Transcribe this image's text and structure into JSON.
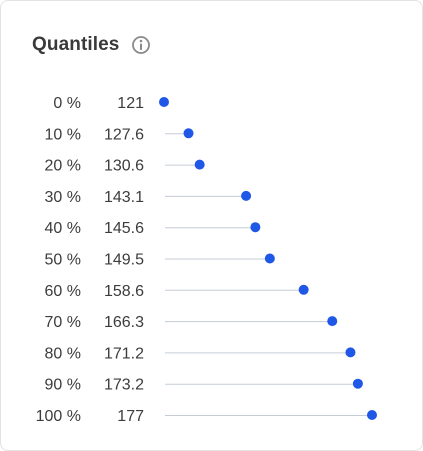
{
  "card": {
    "title": "Quantiles",
    "info_icon": "info-circle-icon"
  },
  "colors": {
    "dot": "#1f57e6",
    "stem": "#c5ccd6",
    "text": "#3c3c3c"
  },
  "chart_data": {
    "type": "scatter",
    "title": "Quantiles",
    "xlabel": "",
    "ylabel": "",
    "categories": [
      "0 %",
      "10 %",
      "20 %",
      "30 %",
      "40 %",
      "50 %",
      "60 %",
      "70 %",
      "80 %",
      "90 %",
      "100 %"
    ],
    "value_labels": [
      "121",
      "127.6",
      "130.6",
      "143.1",
      "145.6",
      "149.5",
      "158.6",
      "166.3",
      "171.2",
      "173.2",
      "177"
    ],
    "values": [
      121,
      127.6,
      130.6,
      143.1,
      145.6,
      149.5,
      158.6,
      166.3,
      171.2,
      173.2,
      177
    ],
    "xlim": [
      121,
      177
    ],
    "grid": false,
    "legend": "none"
  }
}
